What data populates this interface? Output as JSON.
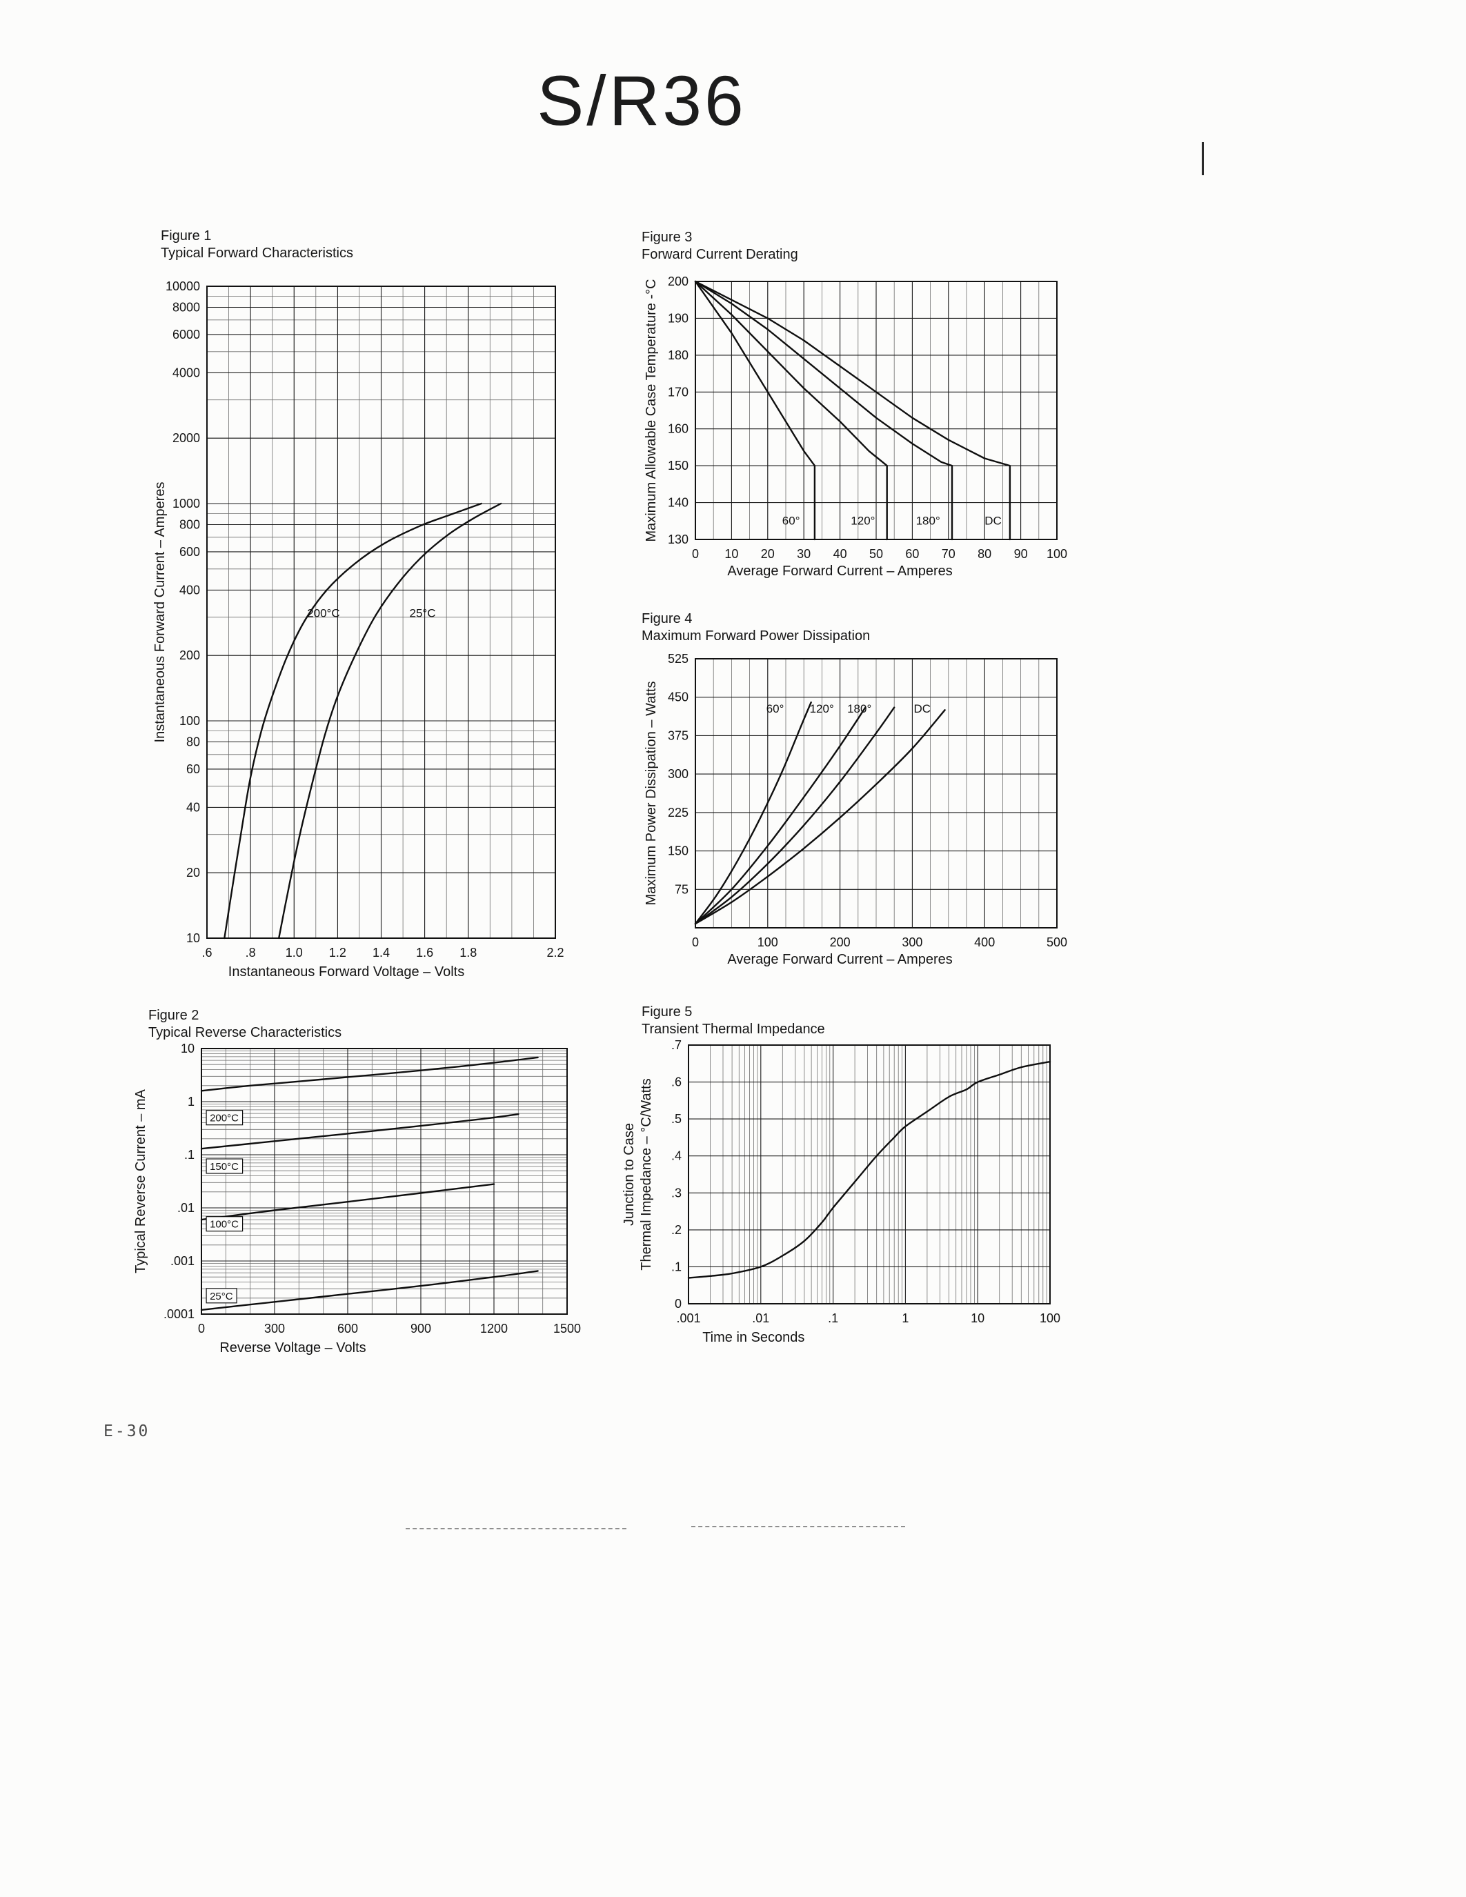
{
  "page": {
    "title": "S/R36",
    "page_number": "E-30"
  },
  "chart_data": [
    {
      "id": "fig1",
      "figure_label": "Figure 1",
      "title": "Typical Forward Characteristics",
      "type": "line",
      "smooth": true,
      "x_axis": {
        "label": "Instantaneous Forward Voltage – Volts",
        "scale": "linear",
        "min": 0.6,
        "max": 2.2,
        "minor": 0.1,
        "ticks": [
          [
            0.6,
            ".6"
          ],
          [
            0.8,
            ".8"
          ],
          [
            1.0,
            "1.0"
          ],
          [
            1.2,
            "1.2"
          ],
          [
            1.4,
            "1.4"
          ],
          [
            1.6,
            "1.6"
          ],
          [
            1.8,
            "1.8"
          ],
          [
            2.2,
            "2.2"
          ]
        ]
      },
      "y_axis": {
        "label": "Instantaneous Forward Current – Amperes",
        "scale": "log",
        "min": 10,
        "max": 10000,
        "minor": "log",
        "ticks": [
          [
            10000,
            "10000"
          ],
          [
            8000,
            "8000"
          ],
          [
            6000,
            "6000"
          ],
          [
            4000,
            "4000"
          ],
          [
            2000,
            "2000"
          ],
          [
            1000,
            "1000"
          ],
          [
            800,
            "800"
          ],
          [
            600,
            "600"
          ],
          [
            400,
            "400"
          ],
          [
            200,
            "200"
          ],
          [
            100,
            "100"
          ],
          [
            80,
            "80"
          ],
          [
            60,
            "60"
          ],
          [
            40,
            "40"
          ],
          [
            20,
            "20"
          ],
          [
            10,
            "10"
          ]
        ]
      },
      "series": [
        {
          "name": "200°C",
          "points": [
            [
              0.68,
              10
            ],
            [
              0.72,
              18
            ],
            [
              0.76,
              32
            ],
            [
              0.8,
              55
            ],
            [
              0.85,
              90
            ],
            [
              0.9,
              130
            ],
            [
              0.97,
              200
            ],
            [
              1.05,
              290
            ],
            [
              1.15,
              400
            ],
            [
              1.28,
              530
            ],
            [
              1.42,
              660
            ],
            [
              1.58,
              790
            ],
            [
              1.72,
              890
            ],
            [
              1.86,
              1000
            ]
          ],
          "label": {
            "text": "200°C",
            "x": 1.06,
            "y": 300
          }
        },
        {
          "name": "25°C",
          "points": [
            [
              0.93,
              10
            ],
            [
              0.97,
              16
            ],
            [
              1.02,
              28
            ],
            [
              1.08,
              50
            ],
            [
              1.14,
              85
            ],
            [
              1.2,
              130
            ],
            [
              1.28,
              200
            ],
            [
              1.37,
              300
            ],
            [
              1.47,
              420
            ],
            [
              1.58,
              560
            ],
            [
              1.7,
              710
            ],
            [
              1.82,
              850
            ],
            [
              1.95,
              1000
            ]
          ],
          "label": {
            "text": "25°C",
            "x": 1.53,
            "y": 300
          }
        }
      ]
    },
    {
      "id": "fig2",
      "figure_label": "Figure 2",
      "title": "Typical Reverse Characteristics",
      "type": "line",
      "smooth": true,
      "x_axis": {
        "label": "Reverse Voltage – Volts",
        "scale": "linear",
        "min": 0,
        "max": 1500,
        "minor": 100,
        "ticks": [
          [
            0,
            "0"
          ],
          [
            300,
            "300"
          ],
          [
            600,
            "600"
          ],
          [
            900,
            "900"
          ],
          [
            1200,
            "1200"
          ],
          [
            1500,
            "1500"
          ]
        ]
      },
      "y_axis": {
        "label": "Typical Reverse Current – mA",
        "scale": "log",
        "min": 0.0001,
        "max": 10,
        "minor": "log",
        "ticks": [
          [
            10,
            "10"
          ],
          [
            1,
            "1"
          ],
          [
            0.1,
            ".1"
          ],
          [
            0.01,
            ".01"
          ],
          [
            0.001,
            ".001"
          ],
          [
            0.0001,
            ".0001"
          ]
        ]
      },
      "series": [
        {
          "name": "200°C",
          "points": [
            [
              0,
              1.6
            ],
            [
              200,
              2.0
            ],
            [
              400,
              2.4
            ],
            [
              600,
              2.9
            ],
            [
              800,
              3.5
            ],
            [
              1000,
              4.3
            ],
            [
              1200,
              5.4
            ],
            [
              1380,
              6.8
            ]
          ],
          "label": {
            "text": "200°C",
            "x": 20,
            "y": 0.45,
            "boxed": true
          }
        },
        {
          "name": "150°C",
          "points": [
            [
              0,
              0.13
            ],
            [
              300,
              0.18
            ],
            [
              600,
              0.25
            ],
            [
              900,
              0.35
            ],
            [
              1150,
              0.47
            ],
            [
              1300,
              0.58
            ]
          ],
          "label": {
            "text": "150°C",
            "x": 20,
            "y": 0.055,
            "boxed": true
          }
        },
        {
          "name": "100°C",
          "points": [
            [
              0,
              0.006
            ],
            [
              300,
              0.009
            ],
            [
              600,
              0.013
            ],
            [
              900,
              0.019
            ],
            [
              1200,
              0.028
            ]
          ],
          "label": {
            "text": "100°C",
            "x": 20,
            "y": 0.0045,
            "boxed": true
          }
        },
        {
          "name": "25°C",
          "points": [
            [
              0,
              0.00012
            ],
            [
              300,
              0.00017
            ],
            [
              600,
              0.00024
            ],
            [
              900,
              0.00034
            ],
            [
              1200,
              0.0005
            ],
            [
              1380,
              0.00065
            ]
          ],
          "label": {
            "text": "25°C",
            "x": 20,
            "y": 0.0002,
            "boxed": true
          }
        }
      ]
    },
    {
      "id": "fig3",
      "figure_label": "Figure 3",
      "title": "Forward Current Derating",
      "type": "line",
      "smooth": false,
      "x_axis": {
        "label": "Average Forward Current – Amperes",
        "scale": "linear",
        "min": 0,
        "max": 100,
        "minor": 5,
        "ticks": [
          [
            0,
            "0"
          ],
          [
            10,
            "10"
          ],
          [
            20,
            "20"
          ],
          [
            30,
            "30"
          ],
          [
            40,
            "40"
          ],
          [
            50,
            "50"
          ],
          [
            60,
            "60"
          ],
          [
            70,
            "70"
          ],
          [
            80,
            "80"
          ],
          [
            90,
            "90"
          ],
          [
            100,
            "100"
          ]
        ]
      },
      "y_axis": {
        "label": "Maximum Allowable Case Temperature -°C",
        "scale": "linear",
        "min": 130,
        "max": 200,
        "ticks": [
          [
            200,
            "200"
          ],
          [
            190,
            "190"
          ],
          [
            180,
            "180"
          ],
          [
            170,
            "170"
          ],
          [
            160,
            "160"
          ],
          [
            150,
            "150"
          ],
          [
            140,
            "140"
          ],
          [
            130,
            "130"
          ]
        ]
      },
      "series": [
        {
          "name": "60°",
          "points": [
            [
              0,
              200
            ],
            [
              5,
              193
            ],
            [
              10,
              186
            ],
            [
              15,
              178
            ],
            [
              20,
              170
            ],
            [
              25,
              162
            ],
            [
              30,
              154
            ],
            [
              33,
              150
            ],
            [
              33,
              130
            ]
          ],
          "label": {
            "text": "60°",
            "x": 24,
            "y": 134
          }
        },
        {
          "name": "120°",
          "points": [
            [
              0,
              200
            ],
            [
              10,
              191
            ],
            [
              20,
              181
            ],
            [
              30,
              171
            ],
            [
              40,
              162
            ],
            [
              48,
              154
            ],
            [
              53,
              150
            ],
            [
              53,
              130
            ]
          ],
          "label": {
            "text": "120°",
            "x": 43,
            "y": 134
          }
        },
        {
          "name": "180°",
          "points": [
            [
              0,
              200
            ],
            [
              10,
              194
            ],
            [
              20,
              187
            ],
            [
              30,
              179
            ],
            [
              40,
              171
            ],
            [
              50,
              163
            ],
            [
              60,
              156
            ],
            [
              68,
              151
            ],
            [
              71,
              150
            ],
            [
              71,
              130
            ]
          ],
          "label": {
            "text": "180°",
            "x": 61,
            "y": 134
          }
        },
        {
          "name": "DC",
          "points": [
            [
              0,
              200
            ],
            [
              10,
              195
            ],
            [
              20,
              190
            ],
            [
              30,
              184
            ],
            [
              40,
              177
            ],
            [
              50,
              170
            ],
            [
              60,
              163
            ],
            [
              70,
              157
            ],
            [
              80,
              152
            ],
            [
              87,
              150
            ],
            [
              87,
              130
            ]
          ],
          "label": {
            "text": "DC",
            "x": 80,
            "y": 134
          }
        }
      ]
    },
    {
      "id": "fig4",
      "figure_label": "Figure 4",
      "title": "Maximum Forward Power Dissipation",
      "type": "line",
      "smooth": true,
      "x_axis": {
        "label": "Average Forward Current – Amperes",
        "scale": "linear",
        "min": 0,
        "max": 500,
        "minor": 25,
        "ticks": [
          [
            0,
            "0"
          ],
          [
            100,
            "100"
          ],
          [
            200,
            "200"
          ],
          [
            300,
            "300"
          ],
          [
            400,
            "400"
          ],
          [
            500,
            "500"
          ]
        ]
      },
      "y_axis": {
        "label": "Maximum Power Dissipation – Watts",
        "scale": "linear",
        "min": 0,
        "max": 525,
        "ticks": [
          [
            525,
            "525"
          ],
          [
            450,
            "450"
          ],
          [
            375,
            "375"
          ],
          [
            300,
            "300"
          ],
          [
            225,
            "225"
          ],
          [
            150,
            "150"
          ],
          [
            75,
            "75"
          ]
        ]
      },
      "series": [
        {
          "name": "60°",
          "points": [
            [
              0,
              8
            ],
            [
              30,
              65
            ],
            [
              60,
              135
            ],
            [
              90,
              215
            ],
            [
              120,
              305
            ],
            [
              145,
              390
            ],
            [
              160,
              440
            ]
          ],
          "label": {
            "text": "60°",
            "x": 98,
            "y": 420
          }
        },
        {
          "name": "120°",
          "points": [
            [
              0,
              8
            ],
            [
              50,
              75
            ],
            [
              100,
              160
            ],
            [
              150,
              255
            ],
            [
              200,
              355
            ],
            [
              235,
              430
            ]
          ],
          "label": {
            "text": "120°",
            "x": 158,
            "y": 420
          }
        },
        {
          "name": "180°",
          "points": [
            [
              0,
              8
            ],
            [
              50,
              60
            ],
            [
              100,
              125
            ],
            [
              150,
              200
            ],
            [
              200,
              285
            ],
            [
              250,
              380
            ],
            [
              275,
              430
            ]
          ],
          "label": {
            "text": "180°",
            "x": 210,
            "y": 420
          }
        },
        {
          "name": "DC",
          "points": [
            [
              0,
              8
            ],
            [
              50,
              50
            ],
            [
              100,
              100
            ],
            [
              150,
              155
            ],
            [
              200,
              215
            ],
            [
              250,
              280
            ],
            [
              300,
              350
            ],
            [
              345,
              425
            ]
          ],
          "label": {
            "text": "DC",
            "x": 302,
            "y": 420
          }
        }
      ]
    },
    {
      "id": "fig5",
      "figure_label": "Figure 5",
      "title": "Transient Thermal Impedance",
      "type": "line",
      "smooth": true,
      "x_axis": {
        "label": "Time in Seconds",
        "scale": "log",
        "min": 0.001,
        "max": 100,
        "minor": "log",
        "ticks": [
          [
            0.001,
            ".001"
          ],
          [
            0.01,
            ".01"
          ],
          [
            0.1,
            ".1"
          ],
          [
            1,
            "1"
          ],
          [
            10,
            "10"
          ],
          [
            100,
            "100"
          ]
        ]
      },
      "y_axis": {
        "label_lines": [
          "Junction to Case",
          "Thermal Impedance – °C/Watts"
        ],
        "scale": "linear",
        "min": 0,
        "max": 0.7,
        "ticks": [
          [
            0.7,
            ".7"
          ],
          [
            0.6,
            ".6"
          ],
          [
            0.5,
            ".5"
          ],
          [
            0.4,
            ".4"
          ],
          [
            0.3,
            ".3"
          ],
          [
            0.2,
            ".2"
          ],
          [
            0.1,
            ".1"
          ],
          [
            0,
            "0"
          ]
        ]
      },
      "series": [
        {
          "name": "junction-to-case thermal impedance",
          "points": [
            [
              0.001,
              0.07
            ],
            [
              0.002,
              0.075
            ],
            [
              0.004,
              0.082
            ],
            [
              0.01,
              0.1
            ],
            [
              0.02,
              0.13
            ],
            [
              0.04,
              0.17
            ],
            [
              0.07,
              0.22
            ],
            [
              0.1,
              0.26
            ],
            [
              0.2,
              0.33
            ],
            [
              0.4,
              0.4
            ],
            [
              0.7,
              0.45
            ],
            [
              1,
              0.48
            ],
            [
              2,
              0.52
            ],
            [
              4,
              0.56
            ],
            [
              7,
              0.58
            ],
            [
              10,
              0.6
            ],
            [
              20,
              0.62
            ],
            [
              40,
              0.64
            ],
            [
              100,
              0.655
            ]
          ]
        }
      ]
    }
  ]
}
